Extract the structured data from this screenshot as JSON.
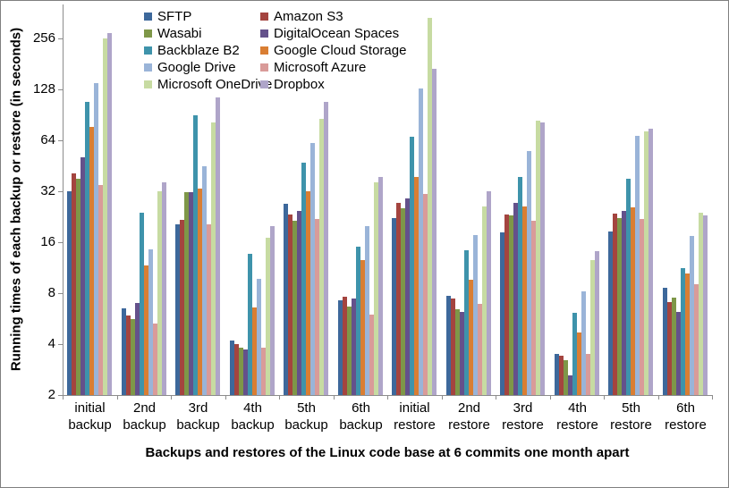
{
  "chart_data": {
    "type": "bar",
    "units": "seconds",
    "y_scale": "log2",
    "ylim": [
      2,
      400
    ],
    "y_ticks": [
      2,
      4,
      8,
      16,
      32,
      64,
      128,
      256
    ],
    "ylabel": "Running times of each backup or restore (in seconds)",
    "xlabel": "Backups and restores of the Linux code base at 6 commits one month apart",
    "grid": false,
    "legend_position": "top-center, two columns",
    "categories": [
      "initial backup",
      "2nd backup",
      "3rd backup",
      "4th backup",
      "5th backup",
      "6th backup",
      "initial restore",
      "2nd restore",
      "3rd restore",
      "4th restore",
      "5th restore",
      "6th restore"
    ],
    "series": [
      {
        "name": "SFTP",
        "color": "#3D689B",
        "values": [
          32,
          6.5,
          20.3,
          4.2,
          27,
          7.3,
          22.3,
          7.7,
          18.4,
          3.5,
          18.5,
          8.6
        ]
      },
      {
        "name": "Amazon S3",
        "color": "#A4443F",
        "values": [
          41,
          5.9,
          21.8,
          4.0,
          23.2,
          7.6,
          27.4,
          7.4,
          23.4,
          3.4,
          23.5,
          7.1
        ]
      },
      {
        "name": "Wasabi",
        "color": "#7E9748",
        "values": [
          38,
          5.6,
          31.6,
          3.8,
          21.4,
          6.7,
          25.4,
          6.4,
          23.0,
          3.2,
          22.2,
          7.5
        ]
      },
      {
        "name": "DigitalOcean Spaces",
        "color": "#64518B",
        "values": [
          51,
          7.0,
          31.8,
          3.7,
          24.6,
          7.4,
          29.2,
          6.2,
          27.2,
          2.6,
          24.6,
          6.2
        ]
      },
      {
        "name": "Backblaze B2",
        "color": "#3E93AB",
        "values": [
          108,
          24,
          90,
          13.6,
          47,
          15,
          67,
          14.3,
          39,
          6.1,
          38,
          11.2
        ]
      },
      {
        "name": "Google Cloud Storage",
        "color": "#D97E33",
        "values": [
          77,
          11.7,
          33,
          6.6,
          32,
          12.5,
          39,
          9.6,
          26.1,
          4.7,
          25.6,
          10.4
        ]
      },
      {
        "name": "Google Drive",
        "color": "#9AB4D8",
        "values": [
          140,
          14.5,
          45,
          9.7,
          62,
          20,
          130,
          17.7,
          55,
          8.2,
          68,
          17.5
        ]
      },
      {
        "name": "Microsoft Azure",
        "color": "#D99B99",
        "values": [
          35,
          5.3,
          20.4,
          3.8,
          22,
          6.0,
          31,
          6.9,
          21.4,
          3.5,
          22,
          9.0
        ]
      },
      {
        "name": "Microsoft OneDrive",
        "color": "#C7DBA2",
        "values": [
          255,
          32,
          82,
          17,
          86,
          36,
          340,
          26,
          84,
          12.6,
          72,
          24
        ]
      },
      {
        "name": "Dropbox",
        "color": "#AFA5C9",
        "values": [
          275,
          36,
          115,
          20,
          108,
          39,
          170,
          32,
          82,
          14.2,
          75,
          23
        ]
      }
    ]
  }
}
